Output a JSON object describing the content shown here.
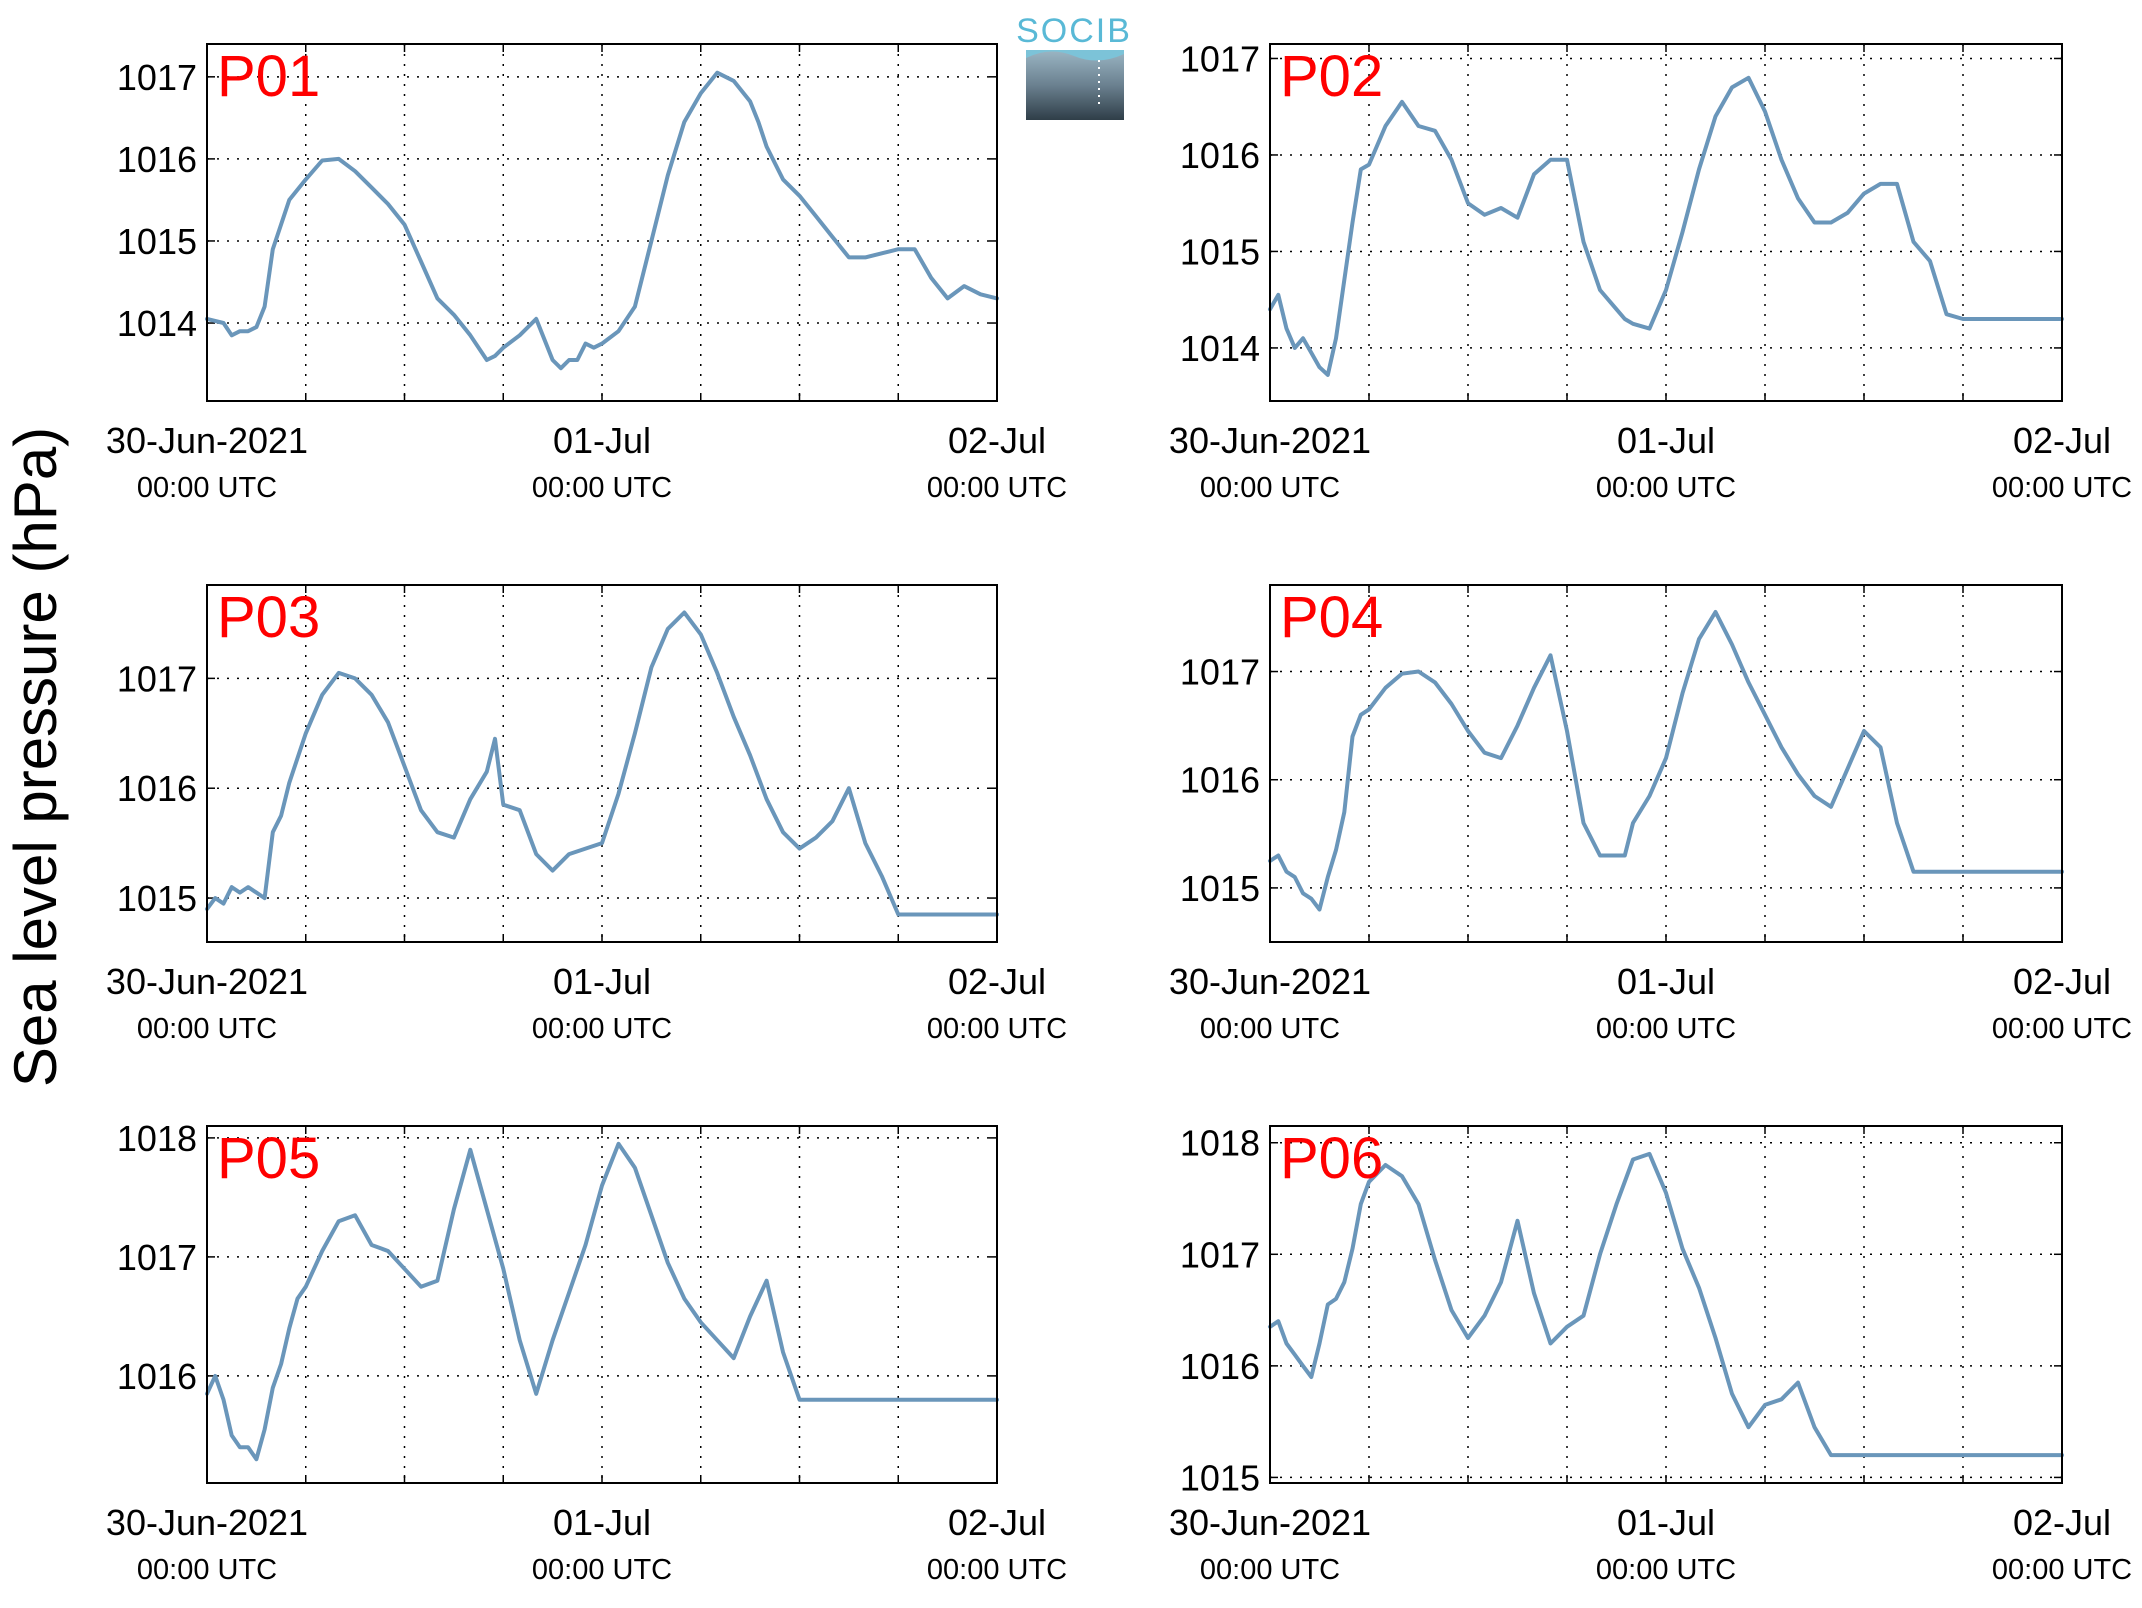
{
  "figure": {
    "ylabel": "Sea level pressure (hPa)",
    "logo_text": "SOCIB",
    "line_color": "#6a96ba",
    "label_color": "#ff0000"
  },
  "chart_data": [
    {
      "type": "line",
      "panel_label": "P01",
      "xlim": [
        0,
        48
      ],
      "ylim": [
        1013.05,
        1017.4
      ],
      "yticks": [
        1014,
        1015,
        1016,
        1017
      ],
      "xticks": [
        {
          "hour": 0,
          "label": "30-Jun-2021",
          "sublabel": "00:00 UTC"
        },
        {
          "hour": 24,
          "label": "01-Jul",
          "sublabel": "00:00 UTC"
        },
        {
          "hour": 48,
          "label": "02-Jul",
          "sublabel": "00:00 UTC"
        }
      ],
      "grid": true,
      "x": [
        0,
        1,
        1.5,
        2,
        2.5,
        3,
        3.5,
        4,
        5,
        6,
        7,
        8,
        9,
        10,
        11,
        12,
        13,
        14,
        15,
        16,
        17,
        17.5,
        18,
        19,
        20,
        21,
        21.5,
        22,
        22.5,
        23,
        23.5,
        24,
        25,
        26,
        27,
        28,
        29,
        30,
        31,
        32,
        33,
        33.5,
        34,
        35,
        36,
        37,
        38,
        39,
        40,
        41,
        42,
        43,
        44,
        45,
        46,
        47,
        48
      ],
      "y": [
        1014.05,
        1014.0,
        1013.85,
        1013.9,
        1013.9,
        1013.95,
        1014.2,
        1014.9,
        1015.5,
        1015.75,
        1015.98,
        1016.0,
        1015.85,
        1015.65,
        1015.45,
        1015.2,
        1014.75,
        1014.3,
        1014.1,
        1013.85,
        1013.55,
        1013.6,
        1013.7,
        1013.85,
        1014.05,
        1013.55,
        1013.45,
        1013.55,
        1013.55,
        1013.75,
        1013.7,
        1013.75,
        1013.9,
        1014.2,
        1015.0,
        1015.8,
        1016.45,
        1016.8,
        1017.05,
        1016.95,
        1016.7,
        1016.45,
        1016.15,
        1015.75,
        1015.55,
        1015.3,
        1015.05,
        1014.8,
        1014.8,
        1014.85,
        1014.9,
        1014.9,
        1014.55,
        1014.3,
        1014.45,
        1014.35,
        1014.3
      ]
    },
    {
      "type": "line",
      "panel_label": "P02",
      "xlim": [
        0,
        48
      ],
      "ylim": [
        1013.45,
        1017.15
      ],
      "yticks": [
        1014,
        1015,
        1016,
        1017
      ],
      "xticks": [
        {
          "hour": 0,
          "label": "30-Jun-2021",
          "sublabel": "00:00 UTC"
        },
        {
          "hour": 24,
          "label": "01-Jul",
          "sublabel": "00:00 UTC"
        },
        {
          "hour": 48,
          "label": "02-Jul",
          "sublabel": "00:00 UTC"
        }
      ],
      "grid": true,
      "x": [
        0,
        0.5,
        1,
        1.5,
        2,
        2.5,
        3,
        3.5,
        4,
        5,
        5.5,
        6,
        7,
        8,
        9,
        10,
        11,
        12,
        13,
        14,
        15,
        16,
        17,
        18,
        19,
        20,
        21,
        21.5,
        22,
        23,
        24,
        25,
        26,
        27,
        28,
        29,
        30,
        31,
        32,
        33,
        34,
        35,
        36,
        37,
        38,
        39,
        40,
        41,
        42,
        43,
        44,
        45,
        46,
        47,
        48
      ],
      "y": [
        1014.4,
        1014.55,
        1014.2,
        1014.0,
        1014.1,
        1013.95,
        1013.8,
        1013.72,
        1014.1,
        1015.3,
        1015.85,
        1015.9,
        1016.3,
        1016.55,
        1016.3,
        1016.25,
        1015.95,
        1015.5,
        1015.38,
        1015.45,
        1015.35,
        1015.8,
        1015.95,
        1015.95,
        1015.1,
        1014.6,
        1014.4,
        1014.3,
        1014.25,
        1014.2,
        1014.6,
        1015.2,
        1015.85,
        1016.4,
        1016.7,
        1016.8,
        1016.45,
        1015.95,
        1015.55,
        1015.3,
        1015.3,
        1015.4,
        1015.6,
        1015.7,
        1015.7,
        1015.1,
        1014.9,
        1014.35,
        1014.3,
        1014.3,
        1014.3,
        1014.3,
        1014.3,
        1014.3,
        1014.3
      ]
    },
    {
      "type": "line",
      "panel_label": "P03",
      "xlim": [
        0,
        48
      ],
      "ylim": [
        1014.6,
        1017.85
      ],
      "yticks": [
        1015,
        1016,
        1017
      ],
      "xticks": [
        {
          "hour": 0,
          "label": "30-Jun-2021",
          "sublabel": "00:00 UTC"
        },
        {
          "hour": 24,
          "label": "01-Jul",
          "sublabel": "00:00 UTC"
        },
        {
          "hour": 48,
          "label": "02-Jul",
          "sublabel": "00:00 UTC"
        }
      ],
      "grid": true,
      "x": [
        0,
        0.5,
        1,
        1.5,
        2,
        2.5,
        3,
        3.5,
        4,
        4.5,
        5,
        6,
        7,
        8,
        9,
        10,
        11,
        12,
        13,
        14,
        15,
        16,
        17,
        17.5,
        18,
        19,
        20,
        21,
        22,
        23,
        24,
        25,
        26,
        27,
        28,
        29,
        30,
        31,
        32,
        33,
        34,
        35,
        36,
        37,
        38,
        39,
        40,
        41,
        42,
        43,
        44,
        45,
        46,
        47,
        48
      ],
      "y": [
        1014.9,
        1015.0,
        1014.95,
        1015.1,
        1015.05,
        1015.1,
        1015.05,
        1015.0,
        1015.6,
        1015.75,
        1016.05,
        1016.5,
        1016.85,
        1017.05,
        1017.0,
        1016.85,
        1016.6,
        1016.2,
        1015.8,
        1015.6,
        1015.55,
        1015.9,
        1016.15,
        1016.45,
        1015.85,
        1015.8,
        1015.4,
        1015.25,
        1015.4,
        1015.45,
        1015.5,
        1015.95,
        1016.5,
        1017.1,
        1017.45,
        1017.6,
        1017.4,
        1017.05,
        1016.65,
        1016.3,
        1015.9,
        1015.6,
        1015.45,
        1015.55,
        1015.7,
        1016.0,
        1015.5,
        1015.2,
        1014.85,
        1014.85,
        1014.85,
        1014.85,
        1014.85,
        1014.85,
        1014.85
      ]
    },
    {
      "type": "line",
      "panel_label": "P04",
      "xlim": [
        0,
        48
      ],
      "ylim": [
        1014.5,
        1017.8
      ],
      "yticks": [
        1015,
        1016,
        1017
      ],
      "xticks": [
        {
          "hour": 0,
          "label": "30-Jun-2021",
          "sublabel": "00:00 UTC"
        },
        {
          "hour": 24,
          "label": "01-Jul",
          "sublabel": "00:00 UTC"
        },
        {
          "hour": 48,
          "label": "02-Jul",
          "sublabel": "00:00 UTC"
        }
      ],
      "grid": true,
      "x": [
        0,
        0.5,
        1,
        1.5,
        2,
        2.5,
        3,
        3.5,
        4,
        4.5,
        5,
        5.5,
        6,
        7,
        8,
        9,
        10,
        11,
        12,
        13,
        14,
        15,
        16,
        17,
        18,
        19,
        20,
        21,
        21.5,
        22,
        23,
        24,
        25,
        26,
        27,
        28,
        29,
        30,
        31,
        32,
        33,
        34,
        35,
        36,
        37,
        38,
        39,
        40,
        41,
        42,
        43,
        44,
        45,
        46,
        47,
        48
      ],
      "y": [
        1015.25,
        1015.3,
        1015.15,
        1015.1,
        1014.95,
        1014.9,
        1014.8,
        1015.1,
        1015.35,
        1015.7,
        1016.4,
        1016.6,
        1016.65,
        1016.85,
        1016.98,
        1017.0,
        1016.9,
        1016.7,
        1016.45,
        1016.25,
        1016.2,
        1016.5,
        1016.85,
        1017.15,
        1016.45,
        1015.6,
        1015.3,
        1015.3,
        1015.3,
        1015.6,
        1015.85,
        1016.2,
        1016.8,
        1017.3,
        1017.55,
        1017.25,
        1016.9,
        1016.6,
        1016.3,
        1016.05,
        1015.85,
        1015.75,
        1016.1,
        1016.45,
        1016.3,
        1015.6,
        1015.15,
        1015.15,
        1015.15,
        1015.15,
        1015.15,
        1015.15,
        1015.15,
        1015.15,
        1015.15,
        1015.15
      ]
    },
    {
      "type": "line",
      "panel_label": "P05",
      "xlim": [
        0,
        48
      ],
      "ylim": [
        1015.1,
        1018.1
      ],
      "yticks": [
        1016,
        1017,
        1018
      ],
      "xticks": [
        {
          "hour": 0,
          "label": "30-Jun-2021",
          "sublabel": "00:00 UTC"
        },
        {
          "hour": 24,
          "label": "01-Jul",
          "sublabel": "00:00 UTC"
        },
        {
          "hour": 48,
          "label": "02-Jul",
          "sublabel": "00:00 UTC"
        }
      ],
      "grid": true,
      "x": [
        0,
        0.5,
        1,
        1.5,
        2,
        2.5,
        3,
        3.5,
        4,
        4.5,
        5,
        5.5,
        6,
        7,
        8,
        9,
        10,
        11,
        12,
        13,
        14,
        15,
        16,
        17,
        18,
        19,
        20,
        21,
        22,
        23,
        24,
        25,
        26,
        27,
        28,
        29,
        30,
        31,
        32,
        33,
        34,
        35,
        36,
        37,
        38,
        39,
        40,
        41,
        42,
        43,
        44,
        45,
        46,
        47,
        48
      ],
      "y": [
        1015.85,
        1016.0,
        1015.8,
        1015.5,
        1015.4,
        1015.4,
        1015.3,
        1015.55,
        1015.9,
        1016.1,
        1016.4,
        1016.65,
        1016.75,
        1017.05,
        1017.3,
        1017.35,
        1017.1,
        1017.05,
        1016.9,
        1016.75,
        1016.8,
        1017.4,
        1017.9,
        1017.4,
        1016.9,
        1016.3,
        1015.85,
        1016.3,
        1016.7,
        1017.1,
        1017.6,
        1017.95,
        1017.75,
        1017.35,
        1016.95,
        1016.65,
        1016.45,
        1016.3,
        1016.15,
        1016.5,
        1016.8,
        1016.2,
        1015.8,
        1015.8,
        1015.8,
        1015.8,
        1015.8,
        1015.8,
        1015.8,
        1015.8,
        1015.8,
        1015.8,
        1015.8,
        1015.8,
        1015.8
      ]
    },
    {
      "type": "line",
      "panel_label": "P06",
      "xlim": [
        0,
        48
      ],
      "ylim": [
        1014.95,
        1018.15
      ],
      "yticks": [
        1015,
        1016,
        1017,
        1018
      ],
      "xticks": [
        {
          "hour": 0,
          "label": "30-Jun-2021",
          "sublabel": "00:00 UTC"
        },
        {
          "hour": 24,
          "label": "01-Jul",
          "sublabel": "00:00 UTC"
        },
        {
          "hour": 48,
          "label": "02-Jul",
          "sublabel": "00:00 UTC"
        }
      ],
      "grid": true,
      "x": [
        0,
        0.5,
        1,
        1.5,
        2,
        2.5,
        3,
        3.5,
        4,
        4.5,
        5,
        5.5,
        6,
        7,
        8,
        9,
        10,
        11,
        12,
        13,
        14,
        15,
        16,
        17,
        18,
        19,
        20,
        21,
        22,
        23,
        24,
        25,
        26,
        27,
        28,
        29,
        30,
        31,
        32,
        33,
        34,
        35,
        36,
        37,
        38,
        39,
        40,
        41,
        42,
        43,
        44,
        45,
        46,
        47,
        48
      ],
      "y": [
        1016.35,
        1016.4,
        1016.2,
        1016.1,
        1016.0,
        1015.9,
        1016.2,
        1016.55,
        1016.6,
        1016.75,
        1017.05,
        1017.45,
        1017.65,
        1017.8,
        1017.7,
        1017.45,
        1016.95,
        1016.5,
        1016.25,
        1016.45,
        1016.75,
        1017.3,
        1016.65,
        1016.2,
        1016.35,
        1016.45,
        1017.0,
        1017.45,
        1017.85,
        1017.9,
        1017.55,
        1017.05,
        1016.7,
        1016.25,
        1015.75,
        1015.45,
        1015.65,
        1015.7,
        1015.85,
        1015.45,
        1015.2,
        1015.2,
        1015.2,
        1015.2,
        1015.2,
        1015.2,
        1015.2,
        1015.2,
        1015.2,
        1015.2,
        1015.2,
        1015.2,
        1015.2,
        1015.2,
        1015.2
      ]
    }
  ]
}
